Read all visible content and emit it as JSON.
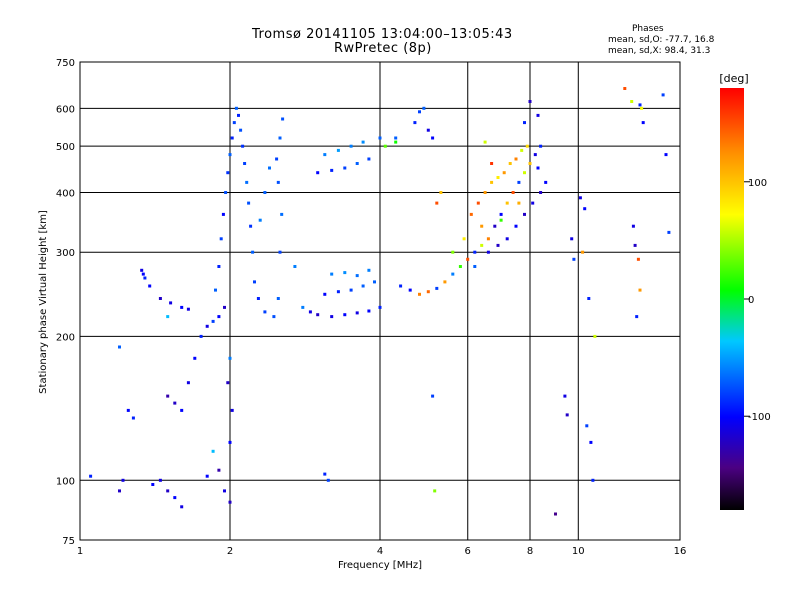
{
  "header": {
    "title_line1": "Tromsø 20141105 13:04:00–13:05:43",
    "title_line2": "RwPretec (8p)",
    "stats_heading": "Phases",
    "stats_o": "mean, sd,O:  -77.7, 16.8",
    "stats_x": "mean, sd,X:   98.4, 31.3"
  },
  "colorbar": {
    "unit": "[deg]",
    "ticks": [
      {
        "value": 100,
        "label": "100"
      },
      {
        "value": 0,
        "label": "0"
      },
      {
        "value": -100,
        "label": "-100"
      }
    ],
    "range": [
      -180,
      180
    ]
  },
  "chart_data": {
    "type": "scatter",
    "xlabel": "Frequency [MHz]",
    "ylabel": "Stationary phase Virtual Height [km]",
    "xscale": "log",
    "yscale": "log",
    "xlim": [
      1,
      16
    ],
    "ylim": [
      75,
      750
    ],
    "xticks": [
      {
        "value": 1,
        "label": "1"
      },
      {
        "value": 2,
        "label": "2"
      },
      {
        "value": 4,
        "label": "4"
      },
      {
        "value": 6,
        "label": "6"
      },
      {
        "value": 8,
        "label": "8"
      },
      {
        "value": 10,
        "label": "10"
      },
      {
        "value": 16,
        "label": "16"
      }
    ],
    "yticks": [
      {
        "value": 75,
        "label": "75"
      },
      {
        "value": 100,
        "label": "100"
      },
      {
        "value": 200,
        "label": "200"
      },
      {
        "value": 300,
        "label": "300"
      },
      {
        "value": 400,
        "label": "400"
      },
      {
        "value": 500,
        "label": "500"
      },
      {
        "value": 600,
        "label": "600"
      },
      {
        "value": 750,
        "label": "750"
      }
    ],
    "grid_x": [
      2,
      4,
      6,
      8,
      10
    ],
    "grid_y": [
      100,
      200,
      300,
      400,
      500,
      600
    ],
    "grid": true,
    "colorscale": "rainbow",
    "color_variable": "phase [deg]",
    "points": [
      [
        1.05,
        102,
        -90
      ],
      [
        1.22,
        100,
        -110
      ],
      [
        1.2,
        95,
        -120
      ],
      [
        1.25,
        140,
        -100
      ],
      [
        1.28,
        135,
        -90
      ],
      [
        1.33,
        275,
        -110
      ],
      [
        1.34,
        270,
        -100
      ],
      [
        1.35,
        265,
        -90
      ],
      [
        1.38,
        255,
        -100
      ],
      [
        1.45,
        240,
        -120
      ],
      [
        1.52,
        235,
        -110
      ],
      [
        1.6,
        230,
        -100
      ],
      [
        1.65,
        228,
        -110
      ],
      [
        1.4,
        98,
        -100
      ],
      [
        1.45,
        100,
        -110
      ],
      [
        1.5,
        95,
        -120
      ],
      [
        1.55,
        92,
        -100
      ],
      [
        1.6,
        88,
        -110
      ],
      [
        1.5,
        150,
        -130
      ],
      [
        1.55,
        145,
        -120
      ],
      [
        1.6,
        140,
        -100
      ],
      [
        1.65,
        160,
        -110
      ],
      [
        1.7,
        180,
        -100
      ],
      [
        1.75,
        200,
        -90
      ],
      [
        1.8,
        210,
        -110
      ],
      [
        1.85,
        215,
        -80
      ],
      [
        1.9,
        220,
        -100
      ],
      [
        1.95,
        230,
        -120
      ],
      [
        1.87,
        250,
        -70
      ],
      [
        1.9,
        280,
        -90
      ],
      [
        1.92,
        320,
        -80
      ],
      [
        1.94,
        360,
        -100
      ],
      [
        1.96,
        400,
        -75
      ],
      [
        1.98,
        440,
        -85
      ],
      [
        2.0,
        480,
        -70
      ],
      [
        2.02,
        520,
        -90
      ],
      [
        2.04,
        560,
        -80
      ],
      [
        2.06,
        600,
        -70
      ],
      [
        2.08,
        580,
        -90
      ],
      [
        2.1,
        540,
        -75
      ],
      [
        2.12,
        500,
        -85
      ],
      [
        2.14,
        460,
        -80
      ],
      [
        2.16,
        420,
        -65
      ],
      [
        2.18,
        380,
        -75
      ],
      [
        2.2,
        340,
        -85
      ],
      [
        2.22,
        300,
        -70
      ],
      [
        2.24,
        260,
        -80
      ],
      [
        2.28,
        240,
        -90
      ],
      [
        2.35,
        225,
        -80
      ],
      [
        2.45,
        220,
        -75
      ],
      [
        2.5,
        240,
        -70
      ],
      [
        2.52,
        300,
        -80
      ],
      [
        2.54,
        360,
        -65
      ],
      [
        2.5,
        420,
        -75
      ],
      [
        2.48,
        470,
        -80
      ],
      [
        2.52,
        520,
        -70
      ],
      [
        2.55,
        570,
        -75
      ],
      [
        2.3,
        350,
        -60
      ],
      [
        2.35,
        400,
        -70
      ],
      [
        2.4,
        450,
        -65
      ],
      [
        2.0,
        180,
        -60
      ],
      [
        1.98,
        160,
        -120
      ],
      [
        2.02,
        140,
        -110
      ],
      [
        2.0,
        120,
        -100
      ],
      [
        1.95,
        95,
        -110
      ],
      [
        2.0,
        90,
        -120
      ],
      [
        1.85,
        115,
        -40
      ],
      [
        1.9,
        105,
        -130
      ],
      [
        3.1,
        103,
        -90
      ],
      [
        3.15,
        100,
        -80
      ],
      [
        2.8,
        230,
        -60
      ],
      [
        2.9,
        225,
        -110
      ],
      [
        3.0,
        222,
        -120
      ],
      [
        3.2,
        220,
        -110
      ],
      [
        3.4,
        222,
        -100
      ],
      [
        3.6,
        224,
        -110
      ],
      [
        3.8,
        226,
        -100
      ],
      [
        4.0,
        230,
        -90
      ],
      [
        3.1,
        245,
        -100
      ],
      [
        3.3,
        248,
        -90
      ],
      [
        3.5,
        250,
        -80
      ],
      [
        3.7,
        255,
        -70
      ],
      [
        3.9,
        260,
        -70
      ],
      [
        3.2,
        270,
        -60
      ],
      [
        3.4,
        272,
        -55
      ],
      [
        3.6,
        268,
        -65
      ],
      [
        3.8,
        275,
        -60
      ],
      [
        3.0,
        440,
        -100
      ],
      [
        3.2,
        445,
        -90
      ],
      [
        3.4,
        450,
        -80
      ],
      [
        3.6,
        460,
        -70
      ],
      [
        3.8,
        470,
        -80
      ],
      [
        3.1,
        480,
        -60
      ],
      [
        3.3,
        490,
        -50
      ],
      [
        3.5,
        500,
        -60
      ],
      [
        3.7,
        510,
        -55
      ],
      [
        4.0,
        520,
        -70
      ],
      [
        4.3,
        520,
        -70
      ],
      [
        4.7,
        560,
        -90
      ],
      [
        4.8,
        590,
        -80
      ],
      [
        4.9,
        600,
        -70
      ],
      [
        5.0,
        540,
        -110
      ],
      [
        5.1,
        520,
        -100
      ],
      [
        4.1,
        500,
        30
      ],
      [
        4.3,
        510,
        10
      ],
      [
        4.4,
        255,
        -90
      ],
      [
        4.6,
        250,
        -100
      ],
      [
        4.8,
        245,
        130
      ],
      [
        5.0,
        248,
        140
      ],
      [
        5.2,
        252,
        -80
      ],
      [
        5.4,
        260,
        120
      ],
      [
        5.6,
        270,
        -60
      ],
      [
        5.8,
        280,
        20
      ],
      [
        6.0,
        290,
        150
      ],
      [
        6.2,
        300,
        -90
      ],
      [
        6.4,
        310,
        60
      ],
      [
        6.6,
        320,
        130
      ],
      [
        6.8,
        340,
        -120
      ],
      [
        7.0,
        360,
        -100
      ],
      [
        7.2,
        380,
        100
      ],
      [
        7.4,
        400,
        150
      ],
      [
        7.6,
        420,
        -80
      ],
      [
        7.8,
        440,
        60
      ],
      [
        8.0,
        460,
        100
      ],
      [
        8.2,
        480,
        -110
      ],
      [
        8.4,
        500,
        -90
      ],
      [
        6.3,
        380,
        150
      ],
      [
        6.5,
        400,
        120
      ],
      [
        6.7,
        420,
        100
      ],
      [
        6.9,
        430,
        80
      ],
      [
        7.1,
        440,
        120
      ],
      [
        7.3,
        460,
        100
      ],
      [
        7.5,
        470,
        130
      ],
      [
        7.7,
        490,
        60
      ],
      [
        7.9,
        500,
        90
      ],
      [
        6.1,
        360,
        140
      ],
      [
        6.4,
        340,
        120
      ],
      [
        6.6,
        300,
        -110
      ],
      [
        6.9,
        310,
        -120
      ],
      [
        7.2,
        320,
        -110
      ],
      [
        7.5,
        340,
        -100
      ],
      [
        7.8,
        360,
        -120
      ],
      [
        8.1,
        380,
        -110
      ],
      [
        8.4,
        400,
        -120
      ],
      [
        8.6,
        420,
        -100
      ],
      [
        5.6,
        300,
        40
      ],
      [
        5.9,
        320,
        80
      ],
      [
        6.2,
        280,
        -70
      ],
      [
        7.0,
        350,
        20
      ],
      [
        7.6,
        380,
        110
      ],
      [
        8.3,
        450,
        -100
      ],
      [
        5.2,
        380,
        150
      ],
      [
        5.3,
        400,
        100
      ],
      [
        6.5,
        510,
        60
      ],
      [
        7.8,
        560,
        -90
      ],
      [
        8.0,
        620,
        -120
      ],
      [
        8.3,
        580,
        -110
      ],
      [
        6.7,
        460,
        160
      ],
      [
        10.1,
        390,
        -110
      ],
      [
        10.3,
        370,
        -100
      ],
      [
        10.5,
        240,
        -90
      ],
      [
        10.4,
        130,
        -80
      ],
      [
        10.6,
        120,
        -100
      ],
      [
        10.8,
        200,
        60
      ],
      [
        10.2,
        300,
        120
      ],
      [
        12.4,
        660,
        150
      ],
      [
        12.8,
        620,
        60
      ],
      [
        13.3,
        610,
        -90
      ],
      [
        13.4,
        600,
        70
      ],
      [
        13.5,
        560,
        -100
      ],
      [
        12.9,
        340,
        -110
      ],
      [
        13.0,
        310,
        -120
      ],
      [
        13.2,
        290,
        150
      ],
      [
        13.3,
        250,
        120
      ],
      [
        13.1,
        220,
        -90
      ],
      [
        14.8,
        640,
        -80
      ],
      [
        15.0,
        480,
        -100
      ],
      [
        15.2,
        330,
        -80
      ],
      [
        9.4,
        150,
        -110
      ],
      [
        9.5,
        137,
        -120
      ],
      [
        9.0,
        85,
        -140
      ],
      [
        10.7,
        100,
        -90
      ],
      [
        9.8,
        290,
        -80
      ],
      [
        9.7,
        320,
        -110
      ],
      [
        5.1,
        150,
        -80
      ],
      [
        5.15,
        95,
        40
      ],
      [
        1.2,
        190,
        -70
      ],
      [
        1.5,
        220,
        -40
      ],
      [
        1.8,
        102,
        -100
      ],
      [
        2.7,
        280,
        -60
      ]
    ]
  }
}
